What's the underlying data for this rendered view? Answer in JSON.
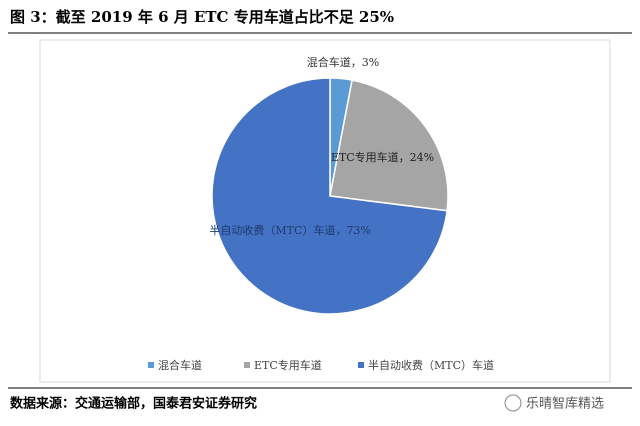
{
  "chart_data": {
    "type": "pie",
    "title": "图 3：截至 2019 年 6 月 ETC 专用车道占比不足 25%",
    "categories": [
      "混合车道",
      "ETC专用车道",
      "半自动收费（MTC）车道"
    ],
    "values": [
      3,
      24,
      73
    ],
    "value_labels": [
      "混合车道，3%",
      "ETC专用车道，24%",
      "半自动收费（MTC）车道，73%"
    ],
    "colors": [
      "#5b9bd5",
      "#a5a5a5",
      "#4472c4"
    ],
    "legend": "bottom",
    "source": "数据来源：交通运输部，国泰君安证券研究",
    "watermark": "乐晴智库精选"
  }
}
